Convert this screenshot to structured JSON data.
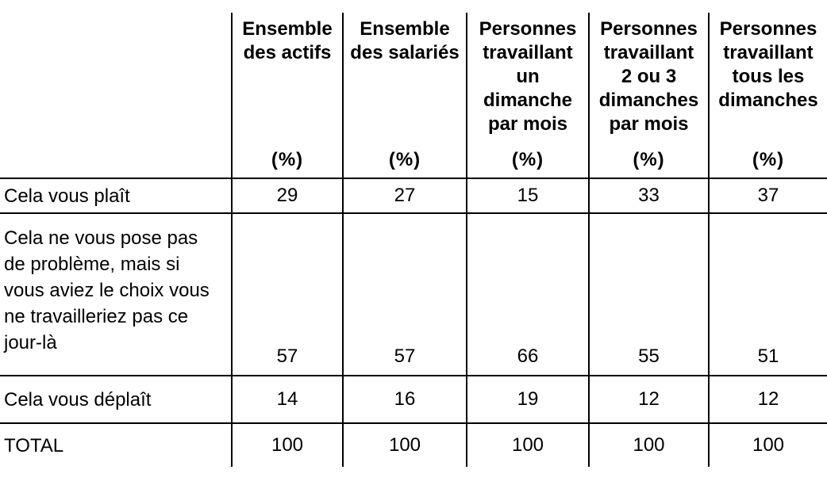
{
  "chart_data": {
    "type": "table",
    "title": "",
    "columns": [
      "Ensemble des actifs (%)",
      "Ensemble des salariés (%)",
      "Personnes travaillant un dimanche par mois (%)",
      "Personnes travaillant 2 ou 3 dimanches par mois (%)",
      "Personnes travaillant tous les dimanches (%)"
    ],
    "rows": [
      {
        "label": "Cela vous plaît",
        "values": [
          29,
          27,
          15,
          33,
          37
        ]
      },
      {
        "label": "Cela ne vous pose pas de problème, mais si vous aviez le choix vous ne travailleriez pas ce jour-là",
        "values": [
          57,
          57,
          66,
          55,
          51
        ]
      },
      {
        "label": "Cela vous déplaît",
        "values": [
          14,
          16,
          19,
          12,
          12
        ]
      },
      {
        "label": "TOTAL",
        "values": [
          100,
          100,
          100,
          100,
          100
        ]
      }
    ]
  },
  "display": {
    "corner_label": "",
    "unit_label": "(%)",
    "header_titles": [
      "Ensemble\ndes actifs",
      "Ensemble\ndes salariés",
      "Personnes\ntravaillant\nun dimanche\npar mois",
      "Personnes\ntravaillant\n2 ou 3\ndimanches\npar mois",
      "Personnes\ntravaillant\ntous les\ndimanches"
    ],
    "row_labels": [
      "Cela vous plaît",
      "Cela ne vous pose pas\nde problème, mais si\nvous aviez le choix vous\nne travailleriez pas ce\njour-là",
      "Cela vous déplaît",
      "TOTAL"
    ],
    "colors": {
      "border": "#000000",
      "text": "#000000",
      "background": "#ffffff"
    }
  }
}
